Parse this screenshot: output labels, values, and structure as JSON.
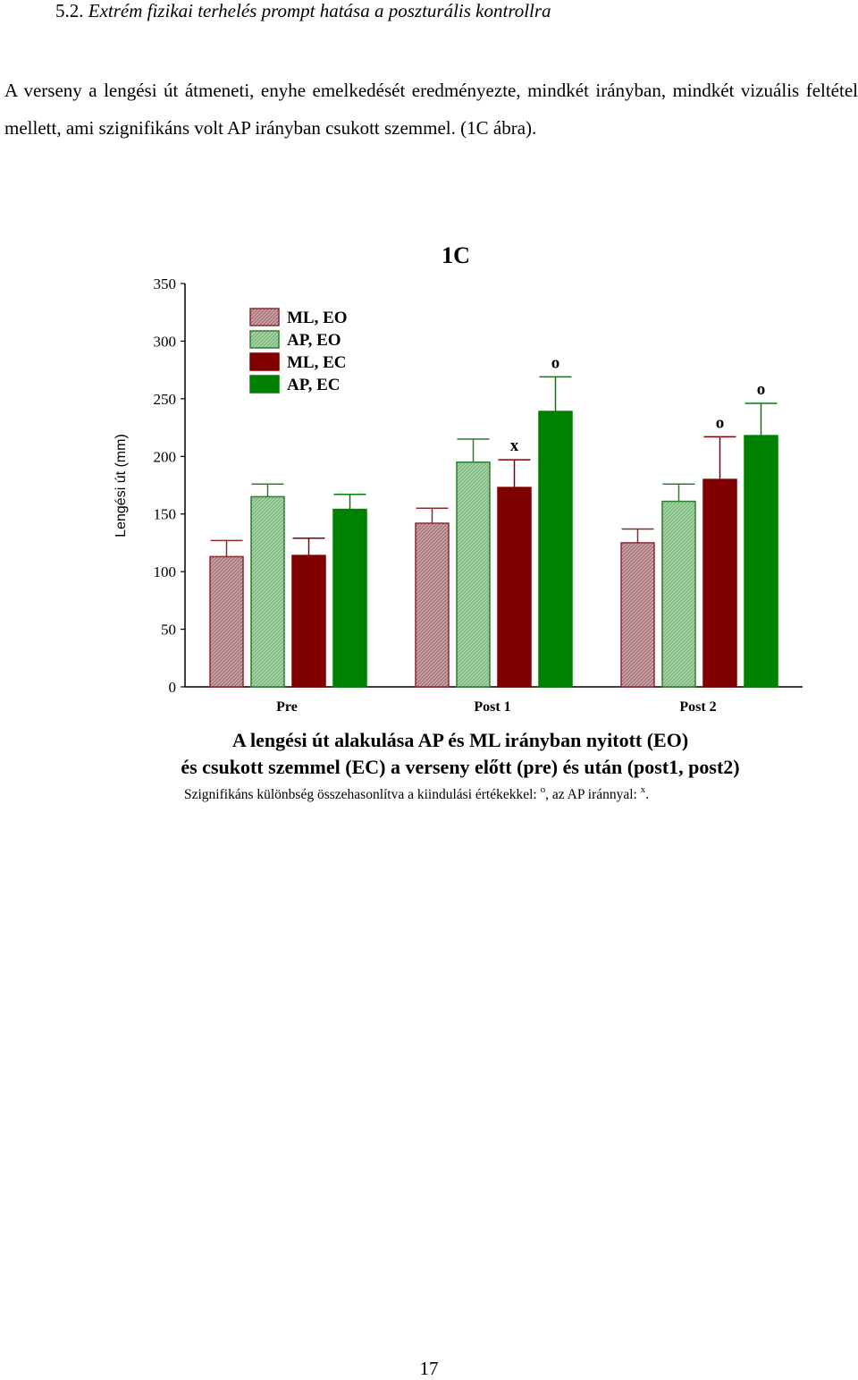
{
  "heading": {
    "number": "5.2.",
    "title": "Extrém fizikai terhelés prompt hatása a poszturális kontrollra"
  },
  "paragraph": "A verseny a lengési út átmeneti, enyhe emelkedését eredményezte, mindkét irányban, mindkét vizuális feltétel mellett, ami szignifikáns volt AP irányban csukott szemmel. (1C ábra).",
  "chart_data": {
    "type": "bar",
    "title": "1C",
    "ylabel": "Lengési út (mm)",
    "xlabel": "",
    "ylim": [
      0,
      350
    ],
    "yticks": [
      0,
      50,
      100,
      150,
      200,
      250,
      300,
      350
    ],
    "categories": [
      "Pre",
      "Post 1",
      "Post 2"
    ],
    "legend_position": "top-left",
    "grid": false,
    "series": [
      {
        "name": "ML, EO",
        "color": "#a8787c",
        "hatched": true,
        "values": [
          113,
          142,
          125
        ],
        "errors": [
          14,
          13,
          12
        ],
        "markers": [
          "",
          "",
          ""
        ]
      },
      {
        "name": "AP, EO",
        "color": "#82b882",
        "hatched": true,
        "values": [
          165,
          195,
          161
        ],
        "errors": [
          11,
          20,
          15
        ],
        "markers": [
          "",
          "",
          ""
        ]
      },
      {
        "name": "ML, EC",
        "color": "#800000",
        "hatched": false,
        "values": [
          114,
          173,
          180
        ],
        "errors": [
          15,
          24,
          37
        ],
        "markers": [
          "",
          "x",
          "o"
        ]
      },
      {
        "name": "AP, EC",
        "color": "#008000",
        "hatched": false,
        "values": [
          154,
          239,
          218
        ],
        "errors": [
          13,
          30,
          28
        ],
        "markers": [
          "",
          "o",
          "o"
        ]
      }
    ],
    "caption_line1": "A lengési út alakulása AP és ML irányban nyitott (EO)",
    "caption_line2": "és csukott szemmel (EC) a verseny előtt (pre) és után (post1, post2)",
    "footnote": {
      "prefix": "Szignifikáns különbség összehasonlítva a kiindulási értékekkel: ",
      "sup1": "o",
      "middle": ", az AP iránnyal: ",
      "sup2": "x",
      "suffix": "."
    }
  },
  "page_number": "17"
}
